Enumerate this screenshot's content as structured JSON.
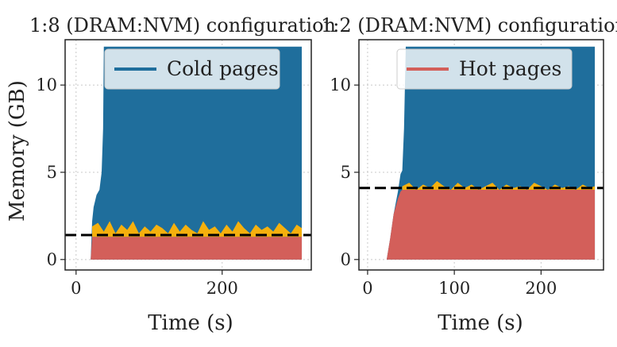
{
  "chart_data": [
    {
      "type": "area",
      "title": "1:8 (DRAM:NVM) configuration",
      "xlabel": "Time (s)",
      "ylabel": "Memory (GB)",
      "xlim": [
        -15,
        322
      ],
      "ylim": [
        -0.6,
        12.6
      ],
      "xticks": [
        0,
        200
      ],
      "yticks": [
        0,
        5,
        10
      ],
      "grid": true,
      "legend": {
        "entries": [
          "Cold pages"
        ],
        "placement": "top-right"
      },
      "threshold_gb": 1.4,
      "series": [
        {
          "name": "Cold pages",
          "color": "#1f6e9c",
          "x": [
            0,
            20,
            22,
            24,
            28,
            32,
            35,
            37,
            38,
            309
          ],
          "y": [
            0,
            0,
            2.2,
            3.0,
            3.7,
            4.0,
            5.0,
            7.5,
            12.2,
            12.2
          ]
        },
        {
          "name": "Hot pages",
          "color": "#d35f5a",
          "x": [
            0,
            20,
            22,
            309
          ],
          "y": [
            0,
            0,
            1.3,
            1.3
          ]
        },
        {
          "name": "Hot-page fluctuation",
          "color": "#f5b00d",
          "x": [
            22,
            30,
            38,
            46,
            54,
            62,
            70,
            78,
            86,
            94,
            102,
            110,
            118,
            126,
            134,
            142,
            150,
            158,
            166,
            174,
            182,
            190,
            198,
            206,
            214,
            222,
            230,
            238,
            246,
            254,
            262,
            270,
            278,
            286,
            294,
            302,
            309
          ],
          "y": [
            1.9,
            2.1,
            1.6,
            2.2,
            1.5,
            2.0,
            1.7,
            2.2,
            1.5,
            1.9,
            1.6,
            2.0,
            1.8,
            1.5,
            2.1,
            1.6,
            2.0,
            1.7,
            1.5,
            2.2,
            1.7,
            1.9,
            1.5,
            2.0,
            1.6,
            2.2,
            1.8,
            1.5,
            2.0,
            1.7,
            1.9,
            1.6,
            2.1,
            1.8,
            1.5,
            2.0,
            1.8
          ]
        }
      ]
    },
    {
      "type": "area",
      "title": "1:2 (DRAM:NVM) configuration",
      "xlabel": "Time (s)",
      "ylabel": "",
      "xlim": [
        -10,
        272
      ],
      "ylim": [
        -0.6,
        12.6
      ],
      "xticks": [
        0,
        100,
        200
      ],
      "yticks": [
        0,
        5,
        10
      ],
      "grid": true,
      "legend": {
        "entries": [
          "Hot pages"
        ],
        "placement": "top-right"
      },
      "threshold_gb": 4.1,
      "series": [
        {
          "name": "Cold pages",
          "color": "#1f6e9c",
          "x": [
            0,
            22,
            26,
            30,
            35,
            38,
            40,
            42,
            44,
            262
          ],
          "y": [
            0,
            0,
            1.2,
            2.6,
            3.9,
            4.9,
            5.1,
            7.5,
            12.2,
            12.2
          ]
        },
        {
          "name": "Hot pages",
          "color": "#d35f5a",
          "x": [
            0,
            22,
            26,
            30,
            35,
            38,
            40,
            262
          ],
          "y": [
            0,
            0,
            1.2,
            2.6,
            3.5,
            3.9,
            4.0,
            4.0
          ]
        },
        {
          "name": "Hot-page fluctuation",
          "color": "#f5b00d",
          "x": [
            40,
            48,
            56,
            64,
            72,
            80,
            88,
            96,
            104,
            112,
            120,
            128,
            136,
            144,
            152,
            160,
            168,
            176,
            184,
            192,
            200,
            208,
            216,
            224,
            232,
            240,
            248,
            256,
            262
          ],
          "y": [
            4.2,
            4.4,
            4.0,
            4.3,
            4.1,
            4.5,
            4.2,
            4.0,
            4.4,
            4.1,
            4.3,
            4.0,
            4.2,
            4.4,
            4.0,
            4.3,
            4.1,
            4.2,
            4.0,
            4.4,
            4.2,
            4.0,
            4.3,
            4.1,
            4.2,
            4.0,
            4.3,
            4.1,
            4.2
          ]
        }
      ]
    }
  ]
}
